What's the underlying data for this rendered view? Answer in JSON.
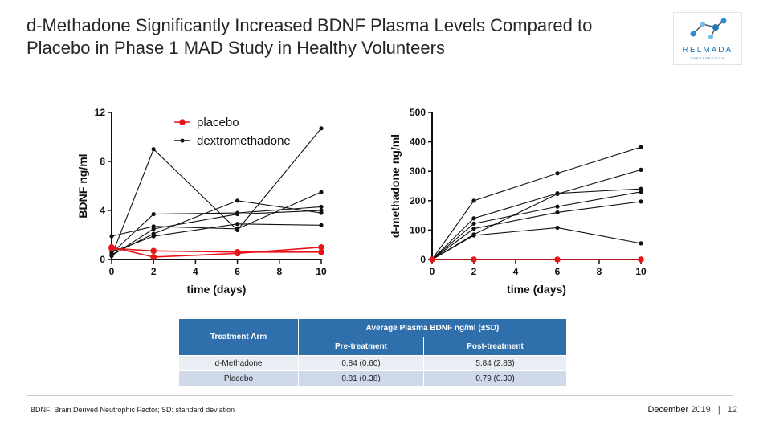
{
  "title": "d-Methadone Significantly Increased BDNF Plasma Levels Compared to Placebo in Phase 1 MAD Study in Healthy Volunteers",
  "logo": {
    "word": "RELMADA",
    "sub": "THERAPEUTICS"
  },
  "colors": {
    "placebo": "#e8141a",
    "active": "#111111",
    "table_header": "#2f6fac",
    "table_row_a": "#e9edf4",
    "table_row_b": "#cfd9ea"
  },
  "chart_data": [
    {
      "type": "line",
      "xlabel": "time (days)",
      "ylabel": "BDNF ng/ml",
      "xlim": [
        0,
        10
      ],
      "ylim": [
        0,
        12
      ],
      "xticks": [
        0,
        2,
        4,
        6,
        8,
        10
      ],
      "yticks": [
        0,
        4,
        8,
        12
      ],
      "legend": {
        "position": "top-right",
        "entries": [
          "placebo",
          "dextromethadone"
        ]
      },
      "series": [
        {
          "name": "placebo",
          "color": "#e8141a",
          "x": [
            0,
            2,
            6,
            10
          ],
          "y": [
            1.0,
            0.2,
            0.5,
            1.0
          ]
        },
        {
          "name": "placebo",
          "color": "#e8141a",
          "x": [
            0,
            2,
            6,
            10
          ],
          "y": [
            0.9,
            0.7,
            0.6,
            0.6
          ]
        },
        {
          "name": "dextromethadone",
          "color": "#111111",
          "x": [
            0,
            2,
            6,
            10
          ],
          "y": [
            0.3,
            9.0,
            2.4,
            10.7
          ]
        },
        {
          "name": "dextromethadone",
          "color": "#111111",
          "x": [
            0,
            2,
            6,
            10
          ],
          "y": [
            1.9,
            2.7,
            2.5,
            5.5
          ]
        },
        {
          "name": "dextromethadone",
          "color": "#111111",
          "x": [
            0,
            2,
            6,
            10
          ],
          "y": [
            0.5,
            3.7,
            3.8,
            4.3
          ]
        },
        {
          "name": "dextromethadone",
          "color": "#111111",
          "x": [
            0,
            2,
            6,
            10
          ],
          "y": [
            0.4,
            2.1,
            4.8,
            3.8
          ]
        },
        {
          "name": "dextromethadone",
          "color": "#111111",
          "x": [
            0,
            2,
            6,
            10
          ],
          "y": [
            0.6,
            1.9,
            2.9,
            2.8
          ]
        },
        {
          "name": "dextromethadone",
          "color": "#111111",
          "x": [
            0,
            2,
            6,
            10
          ],
          "y": [
            0.3,
            2.5,
            3.7,
            4.0
          ]
        }
      ]
    },
    {
      "type": "line",
      "xlabel": "time (days)",
      "ylabel": "d-methadone ng/ml",
      "xlim": [
        0,
        10
      ],
      "ylim": [
        0,
        500
      ],
      "xticks": [
        0,
        2,
        4,
        6,
        8,
        10
      ],
      "yticks": [
        0,
        100,
        200,
        300,
        400,
        500
      ],
      "series": [
        {
          "color": "#e8141a",
          "x": [
            0,
            2,
            6,
            10
          ],
          "y": [
            0,
            0,
            0,
            0
          ]
        },
        {
          "color": "#111111",
          "x": [
            0,
            2,
            6,
            10
          ],
          "y": [
            0,
            200,
            293,
            382
          ]
        },
        {
          "color": "#111111",
          "x": [
            0,
            2,
            6,
            10
          ],
          "y": [
            0,
            140,
            225,
            240
          ]
        },
        {
          "color": "#111111",
          "x": [
            0,
            2,
            6,
            10
          ],
          "y": [
            0,
            122,
            180,
            230
          ]
        },
        {
          "color": "#111111",
          "x": [
            0,
            2,
            6,
            10
          ],
          "y": [
            0,
            105,
            160,
            197
          ]
        },
        {
          "color": "#111111",
          "x": [
            0,
            2,
            6,
            10
          ],
          "y": [
            0,
            85,
            223,
            305
          ]
        },
        {
          "color": "#111111",
          "x": [
            0,
            2,
            6,
            10
          ],
          "y": [
            0,
            82,
            108,
            55
          ]
        }
      ]
    }
  ],
  "table": {
    "arm_header": "Treatment Arm",
    "group_header": "Average Plasma BDNF ng/ml (±SD)",
    "pre_header": "Pre-treatment",
    "post_header": "Post-treatment",
    "rows": [
      {
        "arm": "d-Methadone",
        "pre": "0.84 (0.60)",
        "post": "5.84 (2.83)"
      },
      {
        "arm": "Placebo",
        "pre": "0.81 (0.38)",
        "post": "0.79 (0.30)"
      }
    ]
  },
  "footnote": "BDNF: Brain Derived Neutrophic Factor; SD: standard deviation",
  "footer": {
    "month": "December",
    "year": "2019",
    "separator": "|",
    "page": "12"
  }
}
